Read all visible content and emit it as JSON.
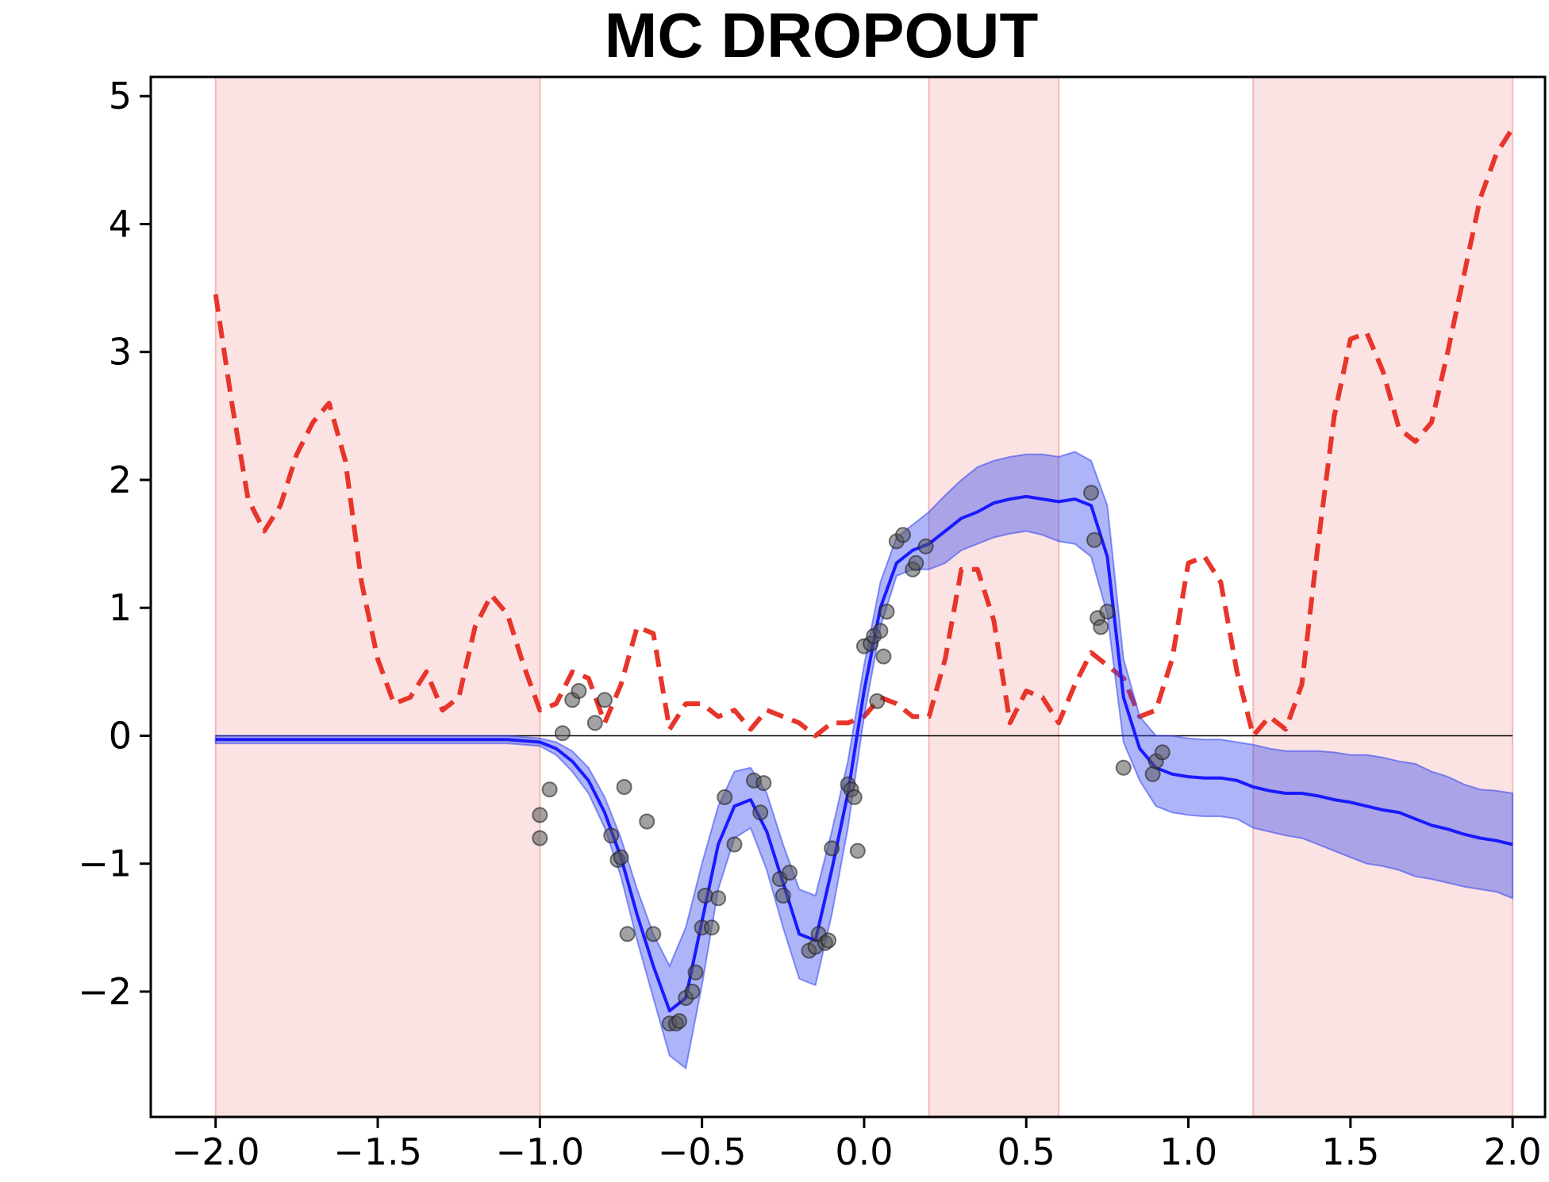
{
  "chart_data": {
    "type": "line",
    "title": "MC  DROPOUT",
    "xlabel": "",
    "ylabel": "",
    "xlim": [
      -2.2,
      2.1
    ],
    "ylim": [
      -2.98,
      5.15
    ],
    "x_ticks": [
      -2.0,
      -1.5,
      -1.0,
      -0.5,
      0.0,
      0.5,
      1.0,
      1.5,
      2.0
    ],
    "x_tick_labels": [
      "−2.0",
      "−1.5",
      "−1.0",
      "−0.5",
      "0.0",
      "0.5",
      "1.0",
      "1.5",
      "2.0"
    ],
    "y_ticks": [
      -2,
      -1,
      0,
      1,
      2,
      3,
      4,
      5
    ],
    "y_tick_labels": [
      "−2",
      "−1",
      "0",
      "1",
      "2",
      "3",
      "4",
      "5"
    ],
    "grid": false,
    "legend": "none",
    "shaded_regions": [
      {
        "x0": -2.0,
        "x1": -1.0
      },
      {
        "x0": 0.2,
        "x1": 0.6
      },
      {
        "x0": 1.2,
        "x1": 2.0
      }
    ],
    "reference_line_y": 0,
    "series": [
      {
        "kind": "dashed-line",
        "color": "#e8352b",
        "x": [
          -2.0,
          -1.95,
          -1.9,
          -1.85,
          -1.8,
          -1.75,
          -1.7,
          -1.65,
          -1.6,
          -1.55,
          -1.5,
          -1.45,
          -1.4,
          -1.35,
          -1.3,
          -1.25,
          -1.2,
          -1.15,
          -1.1,
          -1.05,
          -1.0,
          -0.95,
          -0.9,
          -0.85,
          -0.8,
          -0.75,
          -0.7,
          -0.65,
          -0.6,
          -0.55,
          -0.5,
          -0.45,
          -0.4,
          -0.35,
          -0.3,
          -0.25,
          -0.2,
          -0.15,
          -0.1,
          -0.05,
          0.0,
          0.05,
          0.1,
          0.15,
          0.2,
          0.25,
          0.3,
          0.35,
          0.4,
          0.45,
          0.5,
          0.55,
          0.6,
          0.65,
          0.7,
          0.75,
          0.8,
          0.85,
          0.9,
          0.95,
          1.0,
          1.05,
          1.1,
          1.15,
          1.2,
          1.25,
          1.3,
          1.35,
          1.4,
          1.45,
          1.5,
          1.55,
          1.6,
          1.65,
          1.7,
          1.75,
          1.8,
          1.85,
          1.9,
          1.95,
          2.0
        ],
        "y": [
          3.45,
          2.6,
          1.85,
          1.6,
          1.8,
          2.2,
          2.45,
          2.6,
          2.15,
          1.2,
          0.6,
          0.25,
          0.3,
          0.5,
          0.2,
          0.3,
          0.85,
          1.1,
          0.95,
          0.55,
          0.2,
          0.25,
          0.5,
          0.45,
          0.1,
          0.4,
          0.85,
          0.8,
          0.05,
          0.25,
          0.25,
          0.15,
          0.2,
          0.05,
          0.2,
          0.15,
          0.1,
          0.0,
          0.1,
          0.1,
          0.15,
          0.3,
          0.25,
          0.15,
          0.15,
          0.6,
          1.3,
          1.3,
          0.9,
          0.1,
          0.35,
          0.3,
          0.1,
          0.4,
          0.65,
          0.55,
          0.45,
          0.15,
          0.2,
          0.6,
          1.35,
          1.4,
          1.2,
          0.5,
          0.0,
          0.15,
          0.05,
          0.4,
          1.5,
          2.5,
          3.1,
          3.15,
          2.85,
          2.4,
          2.3,
          2.45,
          3.0,
          3.6,
          4.2,
          4.55,
          4.75
        ]
      },
      {
        "kind": "mean-with-band",
        "color": "#1a1aff",
        "band_color": "#3344ee",
        "x": [
          -2.0,
          -1.9,
          -1.8,
          -1.7,
          -1.6,
          -1.5,
          -1.4,
          -1.3,
          -1.2,
          -1.1,
          -1.05,
          -1.0,
          -0.95,
          -0.9,
          -0.85,
          -0.8,
          -0.75,
          -0.7,
          -0.65,
          -0.6,
          -0.55,
          -0.5,
          -0.45,
          -0.4,
          -0.35,
          -0.3,
          -0.25,
          -0.2,
          -0.15,
          -0.1,
          -0.05,
          0.0,
          0.05,
          0.1,
          0.15,
          0.2,
          0.25,
          0.3,
          0.35,
          0.4,
          0.45,
          0.5,
          0.55,
          0.6,
          0.65,
          0.7,
          0.75,
          0.8,
          0.85,
          0.9,
          0.95,
          1.0,
          1.05,
          1.1,
          1.15,
          1.2,
          1.25,
          1.3,
          1.35,
          1.4,
          1.45,
          1.5,
          1.55,
          1.6,
          1.65,
          1.7,
          1.75,
          1.8,
          1.85,
          1.9,
          1.95,
          2.0
        ],
        "mean": [
          -0.03,
          -0.03,
          -0.03,
          -0.03,
          -0.03,
          -0.03,
          -0.03,
          -0.03,
          -0.03,
          -0.03,
          -0.04,
          -0.05,
          -0.1,
          -0.2,
          -0.35,
          -0.6,
          -0.95,
          -1.4,
          -1.8,
          -2.15,
          -2.05,
          -1.45,
          -0.85,
          -0.55,
          -0.5,
          -0.75,
          -1.15,
          -1.55,
          -1.6,
          -1.05,
          -0.45,
          0.35,
          1.0,
          1.35,
          1.45,
          1.5,
          1.6,
          1.7,
          1.75,
          1.82,
          1.85,
          1.87,
          1.85,
          1.83,
          1.85,
          1.8,
          1.4,
          0.3,
          -0.1,
          -0.25,
          -0.3,
          -0.32,
          -0.33,
          -0.33,
          -0.35,
          -0.4,
          -0.43,
          -0.45,
          -0.45,
          -0.47,
          -0.5,
          -0.52,
          -0.55,
          -0.58,
          -0.6,
          -0.65,
          -0.7,
          -0.73,
          -0.77,
          -0.8,
          -0.82,
          -0.85
        ],
        "lower": [
          -0.06,
          -0.06,
          -0.06,
          -0.06,
          -0.06,
          -0.06,
          -0.06,
          -0.06,
          -0.06,
          -0.06,
          -0.07,
          -0.08,
          -0.15,
          -0.28,
          -0.45,
          -0.72,
          -1.1,
          -1.6,
          -2.05,
          -2.5,
          -2.6,
          -1.95,
          -1.2,
          -0.8,
          -0.72,
          -1.05,
          -1.5,
          -1.9,
          -1.95,
          -1.4,
          -0.72,
          0.15,
          0.85,
          1.25,
          1.3,
          1.3,
          1.35,
          1.45,
          1.5,
          1.55,
          1.58,
          1.6,
          1.57,
          1.52,
          1.5,
          1.4,
          0.95,
          -0.05,
          -0.35,
          -0.55,
          -0.6,
          -0.62,
          -0.63,
          -0.63,
          -0.65,
          -0.72,
          -0.75,
          -0.78,
          -0.8,
          -0.85,
          -0.9,
          -0.95,
          -1.0,
          -1.02,
          -1.05,
          -1.1,
          -1.12,
          -1.15,
          -1.18,
          -1.2,
          -1.22,
          -1.27
        ],
        "upper": [
          0.0,
          0.0,
          0.0,
          0.0,
          0.0,
          0.0,
          0.0,
          0.0,
          0.0,
          0.0,
          -0.01,
          -0.02,
          -0.05,
          -0.12,
          -0.25,
          -0.48,
          -0.8,
          -1.2,
          -1.55,
          -1.8,
          -1.5,
          -1.0,
          -0.55,
          -0.28,
          -0.25,
          -0.45,
          -0.85,
          -1.2,
          -1.25,
          -0.75,
          -0.2,
          0.55,
          1.2,
          1.55,
          1.65,
          1.75,
          1.88,
          2.0,
          2.1,
          2.15,
          2.18,
          2.2,
          2.2,
          2.18,
          2.22,
          2.15,
          1.8,
          0.6,
          0.15,
          0.0,
          0.0,
          -0.02,
          -0.03,
          -0.03,
          -0.05,
          -0.07,
          -0.1,
          -0.12,
          -0.12,
          -0.12,
          -0.13,
          -0.15,
          -0.15,
          -0.17,
          -0.2,
          -0.22,
          -0.28,
          -0.32,
          -0.38,
          -0.42,
          -0.43,
          -0.45
        ]
      },
      {
        "kind": "scatter",
        "color": "#555555",
        "points": [
          [
            -1.0,
            -0.62
          ],
          [
            -1.0,
            -0.8
          ],
          [
            -0.97,
            -0.42
          ],
          [
            -0.93,
            0.02
          ],
          [
            -0.9,
            0.28
          ],
          [
            -0.88,
            0.35
          ],
          [
            -0.83,
            0.1
          ],
          [
            -0.8,
            0.28
          ],
          [
            -0.78,
            -0.78
          ],
          [
            -0.76,
            -0.97
          ],
          [
            -0.75,
            -0.95
          ],
          [
            -0.74,
            -0.4
          ],
          [
            -0.73,
            -1.55
          ],
          [
            -0.67,
            -0.67
          ],
          [
            -0.65,
            -1.55
          ],
          [
            -0.6,
            -2.25
          ],
          [
            -0.58,
            -2.25
          ],
          [
            -0.57,
            -2.23
          ],
          [
            -0.55,
            -2.05
          ],
          [
            -0.53,
            -2.0
          ],
          [
            -0.52,
            -1.85
          ],
          [
            -0.5,
            -1.5
          ],
          [
            -0.49,
            -1.25
          ],
          [
            -0.47,
            -1.5
          ],
          [
            -0.45,
            -1.27
          ],
          [
            -0.43,
            -0.48
          ],
          [
            -0.4,
            -0.85
          ],
          [
            -0.34,
            -0.35
          ],
          [
            -0.32,
            -0.6
          ],
          [
            -0.31,
            -0.37
          ],
          [
            -0.26,
            -1.12
          ],
          [
            -0.25,
            -1.25
          ],
          [
            -0.23,
            -1.07
          ],
          [
            -0.17,
            -1.68
          ],
          [
            -0.15,
            -1.65
          ],
          [
            -0.14,
            -1.55
          ],
          [
            -0.12,
            -1.62
          ],
          [
            -0.11,
            -1.6
          ],
          [
            -0.1,
            -0.88
          ],
          [
            -0.05,
            -0.38
          ],
          [
            -0.04,
            -0.42
          ],
          [
            -0.03,
            -0.48
          ],
          [
            -0.02,
            -0.9
          ],
          [
            0.0,
            0.7
          ],
          [
            0.02,
            0.72
          ],
          [
            0.03,
            0.78
          ],
          [
            0.04,
            0.27
          ],
          [
            0.05,
            0.82
          ],
          [
            0.06,
            0.62
          ],
          [
            0.07,
            0.97
          ],
          [
            0.1,
            1.52
          ],
          [
            0.12,
            1.57
          ],
          [
            0.15,
            1.3
          ],
          [
            0.16,
            1.35
          ],
          [
            0.19,
            1.48
          ],
          [
            0.7,
            1.9
          ],
          [
            0.71,
            1.53
          ],
          [
            0.72,
            0.92
          ],
          [
            0.73,
            0.85
          ],
          [
            0.75,
            0.97
          ],
          [
            0.8,
            -0.25
          ],
          [
            0.89,
            -0.3
          ],
          [
            0.9,
            -0.2
          ],
          [
            0.92,
            -0.13
          ]
        ]
      }
    ]
  }
}
